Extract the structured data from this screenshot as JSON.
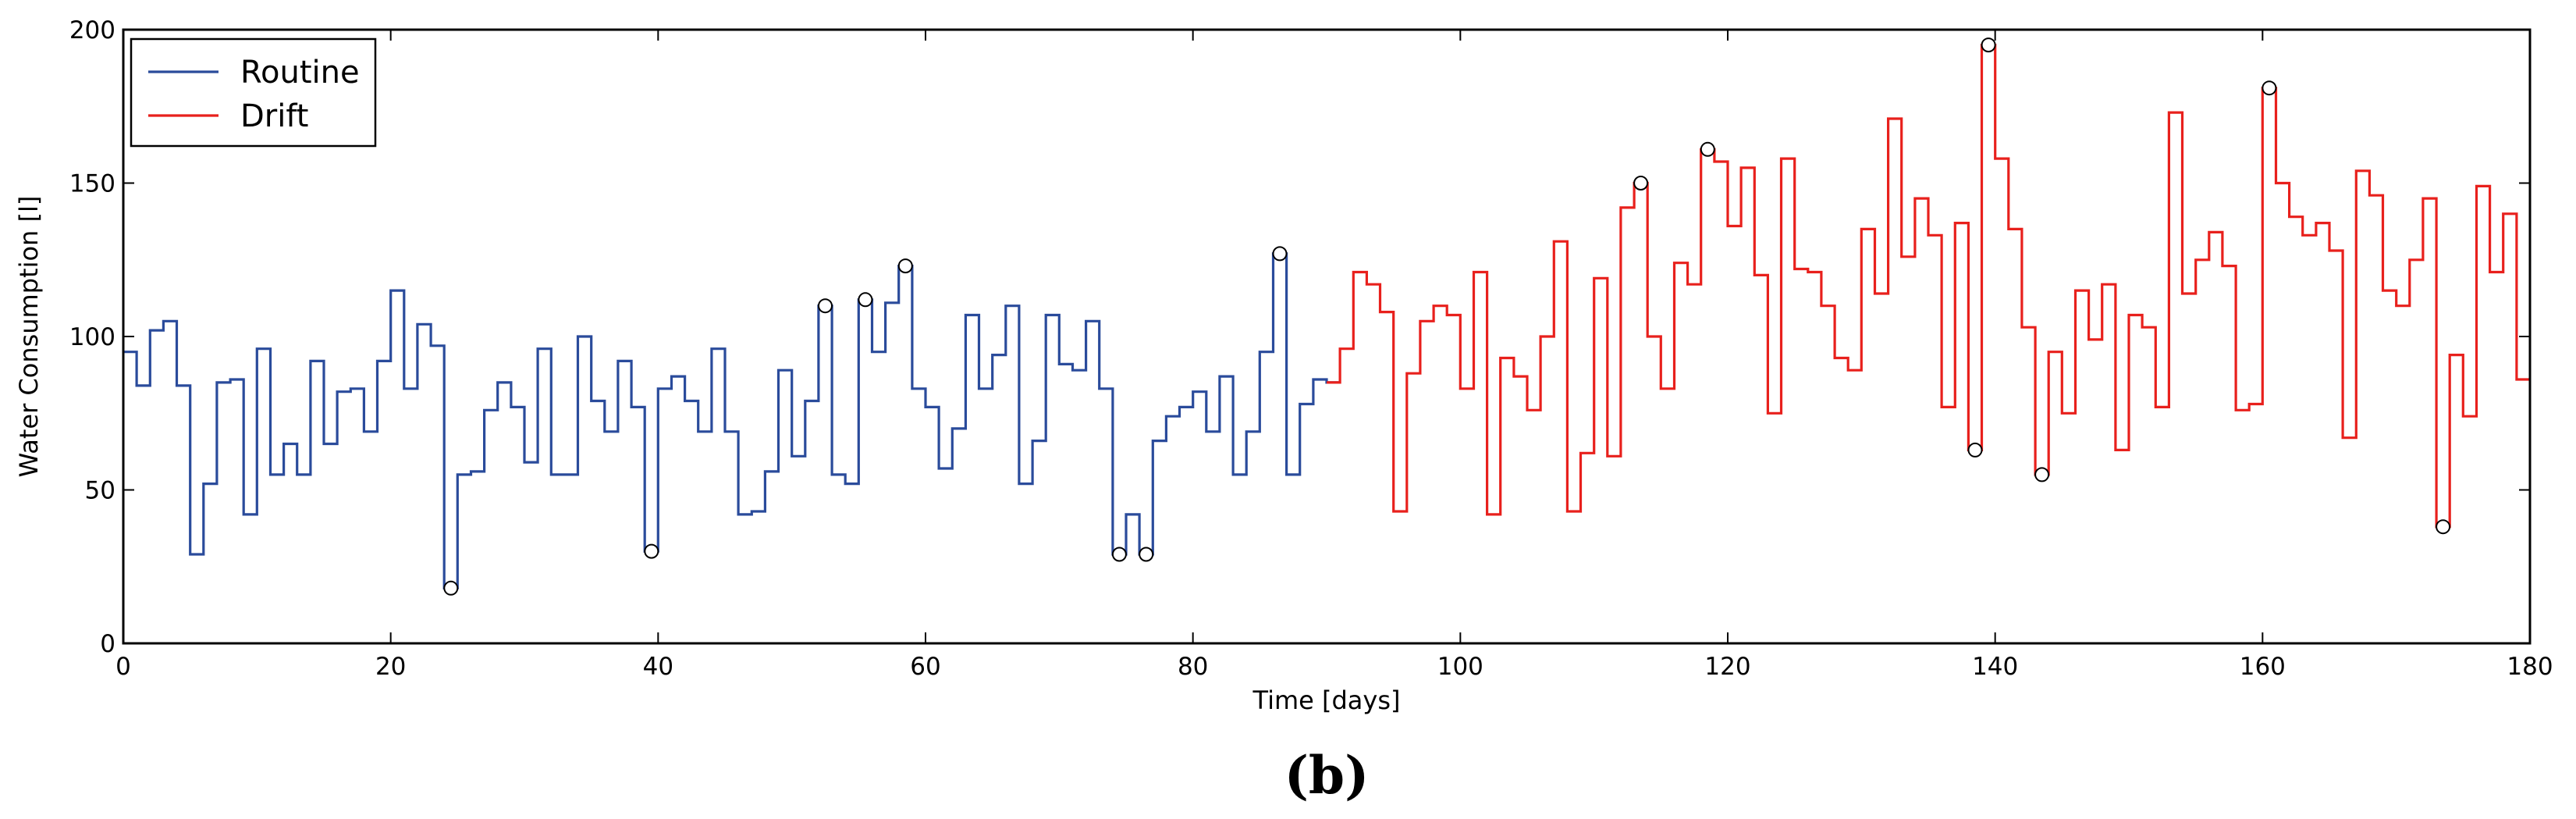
{
  "chart_data": {
    "type": "line",
    "step": "post",
    "title": "",
    "xlabel": "Time [days]",
    "ylabel": "Water Consumption [l]",
    "xlim": [
      0,
      180
    ],
    "ylim": [
      0,
      200
    ],
    "xticks": [
      0,
      20,
      40,
      60,
      80,
      100,
      120,
      140,
      160,
      180
    ],
    "yticks": [
      0,
      50,
      100,
      150,
      200
    ],
    "grid": false,
    "legend_position": "top-left",
    "caption": "(b)",
    "series": [
      {
        "name": "Routine",
        "color": "#2a4b9b",
        "x_start": 0,
        "values": [
          95,
          84,
          102,
          105,
          84,
          29,
          52,
          85,
          86,
          42,
          96,
          55,
          65,
          55,
          92,
          65,
          82,
          83,
          69,
          92,
          115,
          83,
          104,
          97,
          18,
          55,
          56,
          76,
          85,
          77,
          59,
          96,
          55,
          55,
          100,
          79,
          69,
          92,
          77,
          30,
          83,
          87,
          79,
          69,
          96,
          69,
          42,
          43,
          56,
          89,
          61,
          79,
          110,
          55,
          52,
          112,
          95,
          111,
          123,
          83,
          77,
          57,
          70,
          107,
          83,
          94,
          110,
          52,
          66,
          107,
          91,
          89,
          105,
          83,
          29,
          42,
          29,
          66,
          74,
          77,
          82,
          69,
          87,
          55,
          69,
          95,
          127,
          55,
          78,
          86,
          85
        ]
      },
      {
        "name": "Drift",
        "color": "#e8201c",
        "x_start": 90,
        "values": [
          85,
          96,
          121,
          117,
          108,
          43,
          88,
          105,
          110,
          107,
          83,
          121,
          42,
          93,
          87,
          76,
          100,
          131,
          43,
          62,
          119,
          61,
          142,
          150,
          100,
          83,
          124,
          117,
          161,
          157,
          136,
          155,
          120,
          75,
          158,
          122,
          121,
          110,
          93,
          89,
          135,
          114,
          171,
          126,
          145,
          133,
          77,
          137,
          63,
          195,
          158,
          135,
          103,
          55,
          95,
          75,
          115,
          99,
          117,
          63,
          107,
          103,
          77,
          173,
          114,
          125,
          134,
          123,
          76,
          78,
          181,
          150,
          139,
          133,
          137,
          128,
          67,
          154,
          146,
          115,
          110,
          125,
          145,
          38,
          94,
          74,
          149,
          121,
          140,
          86
        ]
      }
    ],
    "circled_points": [
      {
        "x": 24,
        "y": 18
      },
      {
        "x": 39,
        "y": 30
      },
      {
        "x": 52,
        "y": 110
      },
      {
        "x": 55,
        "y": 112
      },
      {
        "x": 58,
        "y": 123
      },
      {
        "x": 74,
        "y": 29
      },
      {
        "x": 76,
        "y": 29
      },
      {
        "x": 86,
        "y": 127
      },
      {
        "x": 113,
        "y": 150
      },
      {
        "x": 118,
        "y": 161
      },
      {
        "x": 138,
        "y": 63
      },
      {
        "x": 139,
        "y": 195
      },
      {
        "x": 143,
        "y": 55
      },
      {
        "x": 160,
        "y": 181
      },
      {
        "x": 173,
        "y": 38
      }
    ]
  }
}
